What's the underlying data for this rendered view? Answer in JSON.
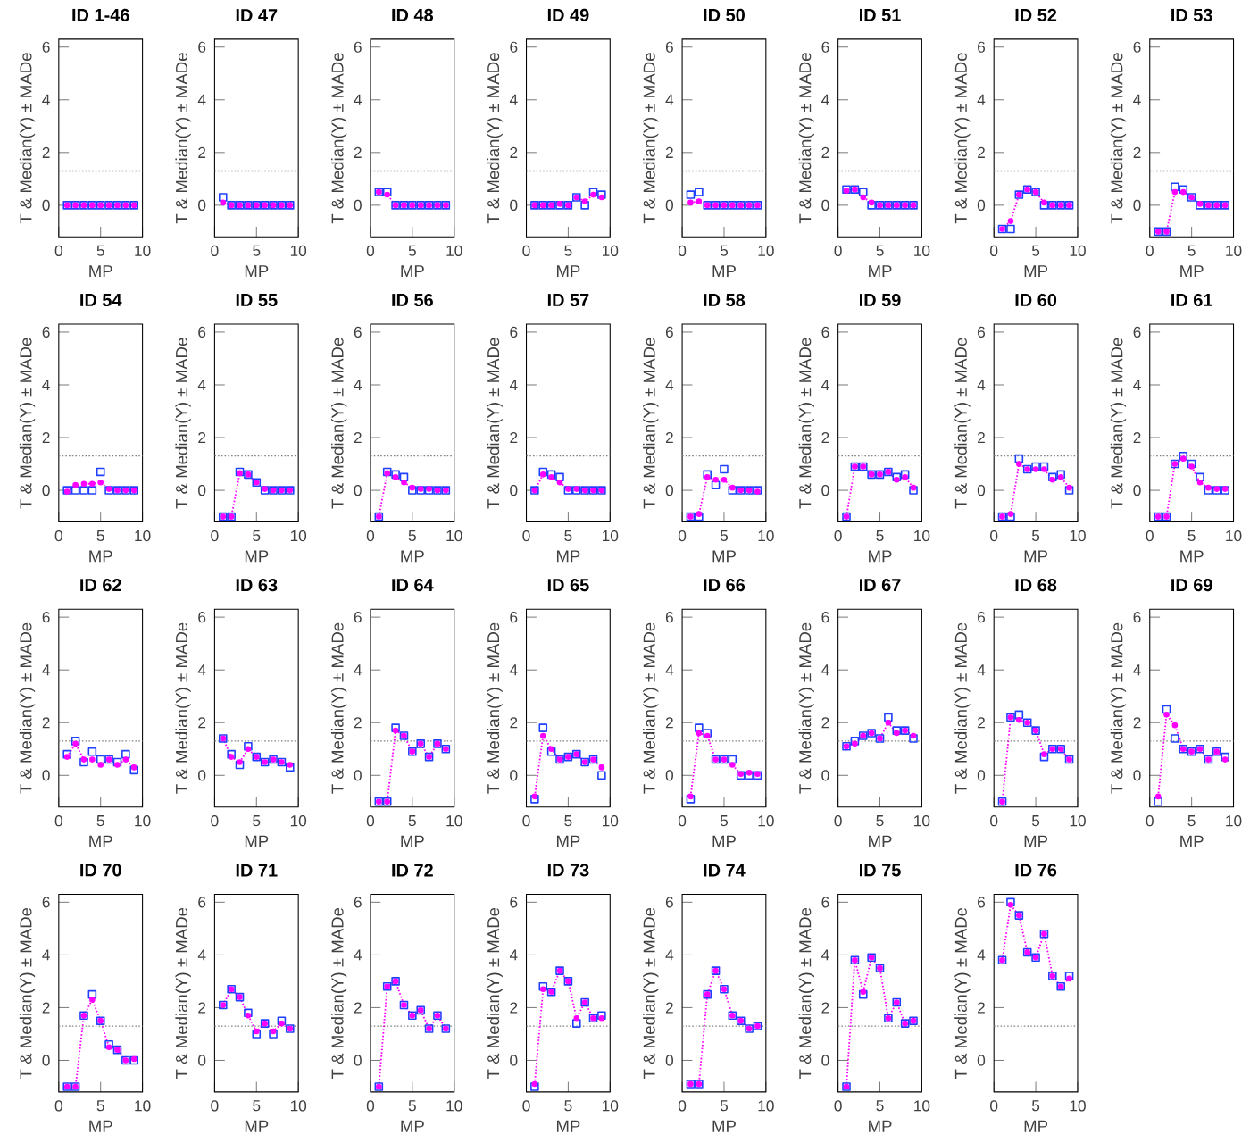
{
  "chart_data": [
    {
      "type": "line",
      "title": "ID 1-46",
      "xlabel": "MP",
      "ylabel": "T & Median(Y) ± MADe",
      "x": [
        1,
        2,
        3,
        4,
        5,
        6,
        7,
        8,
        9
      ],
      "xlim": [
        0,
        10
      ],
      "xticks": [
        0,
        5,
        10
      ],
      "ylim": [
        -1.2,
        6.3
      ],
      "yticks": [
        0,
        2,
        4,
        6
      ],
      "ref_lines": [
        {
          "axis": "y",
          "value": 1.3,
          "color": "#808080",
          "line_style": "dotted"
        }
      ],
      "series": [
        {
          "color": "#ff00ff",
          "marker": "circle",
          "line_style": "dotted",
          "values": [
            0,
            0,
            0,
            0,
            0,
            0,
            0,
            0,
            0
          ]
        },
        {
          "type": "scatter",
          "color": "#2040ff",
          "marker": "square",
          "values": [
            0,
            0,
            0,
            0,
            0,
            0,
            0,
            0,
            0
          ]
        }
      ]
    },
    {
      "type": "line",
      "title": "ID 47",
      "xlabel": "MP",
      "ylabel": "T & Median(Y) ± MADe",
      "x": [
        1,
        2,
        3,
        4,
        5,
        6,
        7,
        8,
        9
      ],
      "xlim": [
        0,
        10
      ],
      "xticks": [
        0,
        5,
        10
      ],
      "ylim": [
        -1.2,
        6.3
      ],
      "yticks": [
        0,
        2,
        4,
        6
      ],
      "ref_lines": [
        {
          "axis": "y",
          "value": 1.3,
          "color": "#808080",
          "line_style": "dotted"
        }
      ],
      "series": [
        {
          "color": "#ff00ff",
          "marker": "circle",
          "line_style": "dotted",
          "values": [
            0.1,
            0,
            0,
            0,
            0,
            0,
            0,
            0,
            0
          ]
        },
        {
          "type": "scatter",
          "color": "#2040ff",
          "marker": "square",
          "values": [
            0.3,
            0,
            0,
            0,
            0,
            0,
            0,
            0,
            0
          ]
        }
      ]
    },
    {
      "type": "line",
      "title": "ID 48",
      "xlabel": "MP",
      "ylabel": "T & Median(Y) ± MADe",
      "x": [
        1,
        2,
        3,
        4,
        5,
        6,
        7,
        8,
        9
      ],
      "xlim": [
        0,
        10
      ],
      "xticks": [
        0,
        5,
        10
      ],
      "ylim": [
        -1.2,
        6.3
      ],
      "yticks": [
        0,
        2,
        4,
        6
      ],
      "ref_lines": [
        {
          "axis": "y",
          "value": 1.3,
          "color": "#808080",
          "line_style": "dotted"
        }
      ],
      "series": [
        {
          "color": "#ff00ff",
          "marker": "circle",
          "line_style": "dotted",
          "values": [
            0.5,
            0.4,
            0,
            0,
            0,
            0,
            0,
            0,
            0
          ]
        },
        {
          "type": "scatter",
          "color": "#2040ff",
          "marker": "square",
          "values": [
            0.5,
            0.5,
            0,
            0,
            0,
            0,
            0,
            0,
            0
          ]
        }
      ]
    },
    {
      "type": "line",
      "title": "ID 49",
      "xlabel": "MP",
      "ylabel": "T & Median(Y) ± MADe",
      "x": [
        1,
        2,
        3,
        4,
        5,
        6,
        7,
        8,
        9
      ],
      "xlim": [
        0,
        10
      ],
      "xticks": [
        0,
        5,
        10
      ],
      "ylim": [
        -1.2,
        6.3
      ],
      "yticks": [
        0,
        2,
        4,
        6
      ],
      "ref_lines": [
        {
          "axis": "y",
          "value": 1.3,
          "color": "#808080",
          "line_style": "dotted"
        }
      ],
      "series": [
        {
          "color": "#ff00ff",
          "marker": "circle",
          "line_style": "dotted",
          "values": [
            0,
            0,
            0,
            0.05,
            0,
            0.3,
            0.15,
            0.4,
            0.3
          ]
        },
        {
          "type": "scatter",
          "color": "#2040ff",
          "marker": "square",
          "values": [
            0,
            0,
            0,
            0,
            0,
            0.3,
            0,
            0.5,
            0.4
          ]
        }
      ]
    },
    {
      "type": "line",
      "title": "ID 50",
      "xlabel": "MP",
      "ylabel": "T & Median(Y) ± MADe",
      "x": [
        1,
        2,
        3,
        4,
        5,
        6,
        7,
        8,
        9
      ],
      "xlim": [
        0,
        10
      ],
      "xticks": [
        0,
        5,
        10
      ],
      "ylim": [
        -1.2,
        6.3
      ],
      "yticks": [
        0,
        2,
        4,
        6
      ],
      "ref_lines": [
        {
          "axis": "y",
          "value": 1.3,
          "color": "#808080",
          "line_style": "dotted"
        }
      ],
      "series": [
        {
          "color": "#ff00ff",
          "marker": "circle",
          "line_style": "dotted",
          "values": [
            0.1,
            0.15,
            0,
            0,
            0,
            0,
            0,
            0,
            0
          ]
        },
        {
          "type": "scatter",
          "color": "#2040ff",
          "marker": "square",
          "values": [
            0.4,
            0.5,
            0,
            0,
            0,
            0,
            0,
            0,
            0
          ]
        }
      ]
    },
    {
      "type": "line",
      "title": "ID 51",
      "xlabel": "MP",
      "ylabel": "T & Median(Y) ± MADe",
      "x": [
        1,
        2,
        3,
        4,
        5,
        6,
        7,
        8,
        9
      ],
      "xlim": [
        0,
        10
      ],
      "xticks": [
        0,
        5,
        10
      ],
      "ylim": [
        -1.2,
        6.3
      ],
      "yticks": [
        0,
        2,
        4,
        6
      ],
      "ref_lines": [
        {
          "axis": "y",
          "value": 1.3,
          "color": "#808080",
          "line_style": "dotted"
        }
      ],
      "series": [
        {
          "color": "#ff00ff",
          "marker": "circle",
          "line_style": "dotted",
          "values": [
            0.55,
            0.6,
            0.3,
            0.1,
            0,
            0,
            0,
            0,
            0
          ]
        },
        {
          "type": "scatter",
          "color": "#2040ff",
          "marker": "square",
          "values": [
            0.6,
            0.6,
            0.5,
            0,
            0,
            0,
            0,
            0,
            0
          ]
        }
      ]
    },
    {
      "type": "line",
      "title": "ID 52",
      "xlabel": "MP",
      "ylabel": "T & Median(Y) ± MADe",
      "x": [
        1,
        2,
        3,
        4,
        5,
        6,
        7,
        8,
        9
      ],
      "xlim": [
        0,
        10
      ],
      "xticks": [
        0,
        5,
        10
      ],
      "ylim": [
        -1.2,
        6.3
      ],
      "yticks": [
        0,
        2,
        4,
        6
      ],
      "ref_lines": [
        {
          "axis": "y",
          "value": 1.3,
          "color": "#808080",
          "line_style": "dotted"
        }
      ],
      "series": [
        {
          "color": "#ff00ff",
          "marker": "circle",
          "line_style": "dotted",
          "values": [
            -0.9,
            -0.6,
            0.4,
            0.6,
            0.5,
            0.1,
            0,
            0,
            0
          ]
        },
        {
          "type": "scatter",
          "color": "#2040ff",
          "marker": "square",
          "values": [
            -0.9,
            -0.9,
            0.4,
            0.6,
            0.5,
            0,
            0,
            0,
            0
          ]
        }
      ]
    },
    {
      "type": "line",
      "title": "ID 53",
      "xlabel": "MP",
      "ylabel": "T & Median(Y) ± MADe",
      "x": [
        1,
        2,
        3,
        4,
        5,
        6,
        7,
        8,
        9
      ],
      "xlim": [
        0,
        10
      ],
      "xticks": [
        0,
        5,
        10
      ],
      "ylim": [
        -1.2,
        6.3
      ],
      "yticks": [
        0,
        2,
        4,
        6
      ],
      "ref_lines": [
        {
          "axis": "y",
          "value": 1.3,
          "color": "#808080",
          "line_style": "dotted"
        }
      ],
      "series": [
        {
          "color": "#ff00ff",
          "marker": "circle",
          "line_style": "dotted",
          "values": [
            -1,
            -1,
            0.5,
            0.5,
            0.3,
            0.05,
            0,
            0,
            0
          ]
        },
        {
          "type": "scatter",
          "color": "#2040ff",
          "marker": "square",
          "values": [
            -1,
            -1,
            0.7,
            0.6,
            0.3,
            0,
            0,
            0,
            0
          ]
        }
      ]
    },
    {
      "type": "line",
      "title": "ID 54",
      "xlabel": "MP",
      "ylabel": "T & Median(Y) ± MADe",
      "x": [
        1,
        2,
        3,
        4,
        5,
        6,
        7,
        8,
        9
      ],
      "xlim": [
        0,
        10
      ],
      "xticks": [
        0,
        5,
        10
      ],
      "ylim": [
        -1.2,
        6.3
      ],
      "yticks": [
        0,
        2,
        4,
        6
      ],
      "ref_lines": [
        {
          "axis": "y",
          "value": 1.3,
          "color": "#808080",
          "line_style": "dotted"
        }
      ],
      "series": [
        {
          "color": "#ff00ff",
          "marker": "circle",
          "line_style": "dotted",
          "values": [
            -0.05,
            0.2,
            0.25,
            0.25,
            0.3,
            0.05,
            0,
            0,
            0
          ]
        },
        {
          "type": "scatter",
          "color": "#2040ff",
          "marker": "square",
          "values": [
            0,
            0,
            0,
            0,
            0.7,
            0,
            0,
            0,
            0
          ]
        }
      ]
    },
    {
      "type": "line",
      "title": "ID 55",
      "xlabel": "MP",
      "ylabel": "T & Median(Y) ± MADe",
      "x": [
        1,
        2,
        3,
        4,
        5,
        6,
        7,
        8,
        9
      ],
      "xlim": [
        0,
        10
      ],
      "xticks": [
        0,
        5,
        10
      ],
      "ylim": [
        -1.2,
        6.3
      ],
      "yticks": [
        0,
        2,
        4,
        6
      ],
      "ref_lines": [
        {
          "axis": "y",
          "value": 1.3,
          "color": "#808080",
          "line_style": "dotted"
        }
      ],
      "series": [
        {
          "color": "#ff00ff",
          "marker": "circle",
          "line_style": "dotted",
          "values": [
            -1,
            -1,
            0.65,
            0.6,
            0.3,
            0.05,
            0,
            0,
            0
          ]
        },
        {
          "type": "scatter",
          "color": "#2040ff",
          "marker": "square",
          "values": [
            -1,
            -1,
            0.7,
            0.6,
            0.3,
            0,
            0,
            0,
            0
          ]
        }
      ]
    },
    {
      "type": "line",
      "title": "ID 56",
      "xlabel": "MP",
      "ylabel": "T & Median(Y) ± MADe",
      "x": [
        1,
        2,
        3,
        4,
        5,
        6,
        7,
        8,
        9
      ],
      "xlim": [
        0,
        10
      ],
      "xticks": [
        0,
        5,
        10
      ],
      "ylim": [
        -1.2,
        6.3
      ],
      "yticks": [
        0,
        2,
        4,
        6
      ],
      "ref_lines": [
        {
          "axis": "y",
          "value": 1.3,
          "color": "#808080",
          "line_style": "dotted"
        }
      ],
      "series": [
        {
          "color": "#ff00ff",
          "marker": "circle",
          "line_style": "dotted",
          "values": [
            -1,
            0.65,
            0.5,
            0.3,
            0.1,
            0.05,
            0.05,
            0,
            0
          ]
        },
        {
          "type": "scatter",
          "color": "#2040ff",
          "marker": "square",
          "values": [
            -1,
            0.7,
            0.6,
            0.5,
            0,
            0,
            0,
            0,
            0
          ]
        }
      ]
    },
    {
      "type": "line",
      "title": "ID 57",
      "xlabel": "MP",
      "ylabel": "T & Median(Y) ± MADe",
      "x": [
        1,
        2,
        3,
        4,
        5,
        6,
        7,
        8,
        9
      ],
      "xlim": [
        0,
        10
      ],
      "xticks": [
        0,
        5,
        10
      ],
      "ylim": [
        -1.2,
        6.3
      ],
      "yticks": [
        0,
        2,
        4,
        6
      ],
      "ref_lines": [
        {
          "axis": "y",
          "value": 1.3,
          "color": "#808080",
          "line_style": "dotted"
        }
      ],
      "series": [
        {
          "color": "#ff00ff",
          "marker": "circle",
          "line_style": "dotted",
          "values": [
            0,
            0.6,
            0.5,
            0.3,
            0.05,
            0.05,
            0,
            0,
            0
          ]
        },
        {
          "type": "scatter",
          "color": "#2040ff",
          "marker": "square",
          "values": [
            0,
            0.7,
            0.6,
            0.5,
            0,
            0,
            0,
            0,
            0
          ]
        }
      ]
    },
    {
      "type": "line",
      "title": "ID 58",
      "xlabel": "MP",
      "ylabel": "T & Median(Y) ± MADe",
      "x": [
        1,
        2,
        3,
        4,
        5,
        6,
        7,
        8,
        9
      ],
      "xlim": [
        0,
        10
      ],
      "xticks": [
        0,
        5,
        10
      ],
      "ylim": [
        -1.2,
        6.3
      ],
      "yticks": [
        0,
        2,
        4,
        6
      ],
      "ref_lines": [
        {
          "axis": "y",
          "value": 1.3,
          "color": "#808080",
          "line_style": "dotted"
        }
      ],
      "series": [
        {
          "color": "#ff00ff",
          "marker": "circle",
          "line_style": "dotted",
          "values": [
            -1,
            -0.9,
            0.5,
            0.4,
            0.4,
            0.1,
            0,
            0,
            -0.05
          ]
        },
        {
          "type": "scatter",
          "color": "#2040ff",
          "marker": "square",
          "values": [
            -1,
            -1,
            0.6,
            0.2,
            0.8,
            0,
            0,
            0,
            0
          ]
        }
      ]
    },
    {
      "type": "line",
      "title": "ID 59",
      "xlabel": "MP",
      "ylabel": "T & Median(Y) ± MADe",
      "x": [
        1,
        2,
        3,
        4,
        5,
        6,
        7,
        8,
        9
      ],
      "xlim": [
        0,
        10
      ],
      "xticks": [
        0,
        5,
        10
      ],
      "ylim": [
        -1.2,
        6.3
      ],
      "yticks": [
        0,
        2,
        4,
        6
      ],
      "ref_lines": [
        {
          "axis": "y",
          "value": 1.3,
          "color": "#808080",
          "line_style": "dotted"
        }
      ],
      "series": [
        {
          "color": "#ff00ff",
          "marker": "circle",
          "line_style": "dotted",
          "values": [
            -1,
            0.9,
            0.9,
            0.6,
            0.6,
            0.7,
            0.4,
            0.5,
            0.1
          ]
        },
        {
          "type": "scatter",
          "color": "#2040ff",
          "marker": "square",
          "values": [
            -1,
            0.9,
            0.9,
            0.6,
            0.6,
            0.7,
            0.5,
            0.6,
            0
          ]
        }
      ]
    },
    {
      "type": "line",
      "title": "ID 60",
      "xlabel": "MP",
      "ylabel": "T & Median(Y) ± MADe",
      "x": [
        1,
        2,
        3,
        4,
        5,
        6,
        7,
        8,
        9
      ],
      "xlim": [
        0,
        10
      ],
      "xticks": [
        0,
        5,
        10
      ],
      "ylim": [
        -1.2,
        6.3
      ],
      "yticks": [
        0,
        2,
        4,
        6
      ],
      "ref_lines": [
        {
          "axis": "y",
          "value": 1.3,
          "color": "#808080",
          "line_style": "dotted"
        }
      ],
      "series": [
        {
          "color": "#ff00ff",
          "marker": "circle",
          "line_style": "dotted",
          "values": [
            -1,
            -0.9,
            1.0,
            0.8,
            0.8,
            0.8,
            0.4,
            0.5,
            0.1
          ]
        },
        {
          "type": "scatter",
          "color": "#2040ff",
          "marker": "square",
          "values": [
            -1,
            -1,
            1.2,
            0.8,
            0.9,
            0.9,
            0.5,
            0.6,
            0
          ]
        }
      ]
    },
    {
      "type": "line",
      "title": "ID 61",
      "xlabel": "MP",
      "ylabel": "T & Median(Y) ± MADe",
      "x": [
        1,
        2,
        3,
        4,
        5,
        6,
        7,
        8,
        9
      ],
      "xlim": [
        0,
        10
      ],
      "xticks": [
        0,
        5,
        10
      ],
      "ylim": [
        -1.2,
        6.3
      ],
      "yticks": [
        0,
        2,
        4,
        6
      ],
      "ref_lines": [
        {
          "axis": "y",
          "value": 1.3,
          "color": "#808080",
          "line_style": "dotted"
        }
      ],
      "series": [
        {
          "color": "#ff00ff",
          "marker": "circle",
          "line_style": "dotted",
          "values": [
            -1,
            -1,
            1.0,
            1.2,
            0.9,
            0.3,
            0.1,
            0.05,
            0.05
          ]
        },
        {
          "type": "scatter",
          "color": "#2040ff",
          "marker": "square",
          "values": [
            -1,
            -1,
            1.0,
            1.3,
            1.0,
            0.5,
            0,
            0,
            0
          ]
        }
      ]
    },
    {
      "type": "line",
      "title": "ID 62",
      "xlabel": "MP",
      "ylabel": "T & Median(Y) ± MADe",
      "x": [
        1,
        2,
        3,
        4,
        5,
        6,
        7,
        8,
        9
      ],
      "xlim": [
        0,
        10
      ],
      "xticks": [
        0,
        5,
        10
      ],
      "ylim": [
        -1.2,
        6.3
      ],
      "yticks": [
        0,
        2,
        4,
        6
      ],
      "ref_lines": [
        {
          "axis": "y",
          "value": 1.3,
          "color": "#808080",
          "line_style": "dotted"
        }
      ],
      "series": [
        {
          "color": "#ff00ff",
          "marker": "circle",
          "line_style": "dotted",
          "values": [
            0.7,
            1.2,
            0.6,
            0.6,
            0.4,
            0.6,
            0.4,
            0.6,
            0.3
          ]
        },
        {
          "type": "scatter",
          "color": "#2040ff",
          "marker": "square",
          "values": [
            0.8,
            1.3,
            0.5,
            0.9,
            0.6,
            0.6,
            0.5,
            0.8,
            0.2
          ]
        }
      ]
    },
    {
      "type": "line",
      "title": "ID 63",
      "xlabel": "MP",
      "ylabel": "T & Median(Y) ± MADe",
      "x": [
        1,
        2,
        3,
        4,
        5,
        6,
        7,
        8,
        9
      ],
      "xlim": [
        0,
        10
      ],
      "xticks": [
        0,
        5,
        10
      ],
      "ylim": [
        -1.2,
        6.3
      ],
      "yticks": [
        0,
        2,
        4,
        6
      ],
      "ref_lines": [
        {
          "axis": "y",
          "value": 1.3,
          "color": "#808080",
          "line_style": "dotted"
        }
      ],
      "series": [
        {
          "color": "#ff00ff",
          "marker": "circle",
          "line_style": "dotted",
          "values": [
            1.4,
            0.7,
            0.5,
            1.0,
            0.7,
            0.5,
            0.6,
            0.5,
            0.4
          ]
        },
        {
          "type": "scatter",
          "color": "#2040ff",
          "marker": "square",
          "values": [
            1.4,
            0.8,
            0.4,
            1.1,
            0.7,
            0.5,
            0.6,
            0.5,
            0.3
          ]
        }
      ]
    },
    {
      "type": "line",
      "title": "ID 64",
      "xlabel": "MP",
      "ylabel": "T & Median(Y) ± MADe",
      "x": [
        1,
        2,
        3,
        4,
        5,
        6,
        7,
        8,
        9
      ],
      "xlim": [
        0,
        10
      ],
      "xticks": [
        0,
        5,
        10
      ],
      "ylim": [
        -1.2,
        6.3
      ],
      "yticks": [
        0,
        2,
        4,
        6
      ],
      "ref_lines": [
        {
          "axis": "y",
          "value": 1.3,
          "color": "#808080",
          "line_style": "dotted"
        }
      ],
      "series": [
        {
          "color": "#ff00ff",
          "marker": "circle",
          "line_style": "dotted",
          "values": [
            -1,
            -1,
            1.7,
            1.5,
            0.9,
            1.2,
            0.7,
            1.2,
            1.0
          ]
        },
        {
          "type": "scatter",
          "color": "#2040ff",
          "marker": "square",
          "values": [
            -1,
            -1,
            1.8,
            1.5,
            0.9,
            1.2,
            0.7,
            1.2,
            1.0
          ]
        }
      ]
    },
    {
      "type": "line",
      "title": "ID 65",
      "xlabel": "MP",
      "ylabel": "T & Median(Y) ± MADe",
      "x": [
        1,
        2,
        3,
        4,
        5,
        6,
        7,
        8,
        9
      ],
      "xlim": [
        0,
        10
      ],
      "xticks": [
        0,
        5,
        10
      ],
      "ylim": [
        -1.2,
        6.3
      ],
      "yticks": [
        0,
        2,
        4,
        6
      ],
      "ref_lines": [
        {
          "axis": "y",
          "value": 1.3,
          "color": "#808080",
          "line_style": "dotted"
        }
      ],
      "series": [
        {
          "color": "#ff00ff",
          "marker": "circle",
          "line_style": "dotted",
          "values": [
            -0.8,
            1.5,
            1.0,
            0.6,
            0.7,
            0.8,
            0.5,
            0.6,
            0.3
          ]
        },
        {
          "type": "scatter",
          "color": "#2040ff",
          "marker": "square",
          "values": [
            -0.9,
            1.8,
            0.9,
            0.6,
            0.7,
            0.8,
            0.5,
            0.6,
            0
          ]
        }
      ]
    },
    {
      "type": "line",
      "title": "ID 66",
      "xlabel": "MP",
      "ylabel": "T & Median(Y) ± MADe",
      "x": [
        1,
        2,
        3,
        4,
        5,
        6,
        7,
        8,
        9
      ],
      "xlim": [
        0,
        10
      ],
      "xticks": [
        0,
        5,
        10
      ],
      "ylim": [
        -1.2,
        6.3
      ],
      "yticks": [
        0,
        2,
        4,
        6
      ],
      "ref_lines": [
        {
          "axis": "y",
          "value": 1.3,
          "color": "#808080",
          "line_style": "dotted"
        }
      ],
      "series": [
        {
          "color": "#ff00ff",
          "marker": "circle",
          "line_style": "dotted",
          "values": [
            -0.8,
            1.6,
            1.5,
            0.6,
            0.6,
            0.4,
            0.05,
            0.1,
            0.05
          ]
        },
        {
          "type": "scatter",
          "color": "#2040ff",
          "marker": "square",
          "values": [
            -0.9,
            1.8,
            1.6,
            0.6,
            0.6,
            0.6,
            0,
            0,
            0
          ]
        }
      ]
    },
    {
      "type": "line",
      "title": "ID 67",
      "xlabel": "MP",
      "ylabel": "T & Median(Y) ± MADe",
      "x": [
        1,
        2,
        3,
        4,
        5,
        6,
        7,
        8,
        9
      ],
      "xlim": [
        0,
        10
      ],
      "xticks": [
        0,
        5,
        10
      ],
      "ylim": [
        -1.2,
        6.3
      ],
      "yticks": [
        0,
        2,
        4,
        6
      ],
      "ref_lines": [
        {
          "axis": "y",
          "value": 1.3,
          "color": "#808080",
          "line_style": "dotted"
        }
      ],
      "series": [
        {
          "color": "#ff00ff",
          "marker": "circle",
          "line_style": "dotted",
          "values": [
            1.1,
            1.2,
            1.5,
            1.6,
            1.4,
            2.0,
            1.6,
            1.7,
            1.5
          ]
        },
        {
          "type": "scatter",
          "color": "#2040ff",
          "marker": "square",
          "values": [
            1.1,
            1.3,
            1.5,
            1.6,
            1.4,
            2.2,
            1.7,
            1.7,
            1.4
          ]
        }
      ]
    },
    {
      "type": "line",
      "title": "ID 68",
      "xlabel": "MP",
      "ylabel": "T & Median(Y) ± MADe",
      "x": [
        1,
        2,
        3,
        4,
        5,
        6,
        7,
        8,
        9
      ],
      "xlim": [
        0,
        10
      ],
      "xticks": [
        0,
        5,
        10
      ],
      "ylim": [
        -1.2,
        6.3
      ],
      "yticks": [
        0,
        2,
        4,
        6
      ],
      "ref_lines": [
        {
          "axis": "y",
          "value": 1.3,
          "color": "#808080",
          "line_style": "dotted"
        }
      ],
      "series": [
        {
          "color": "#ff00ff",
          "marker": "circle",
          "line_style": "dotted",
          "values": [
            -1,
            2.2,
            2.1,
            2.0,
            1.7,
            0.8,
            1.0,
            1.0,
            0.6
          ]
        },
        {
          "type": "scatter",
          "color": "#2040ff",
          "marker": "square",
          "values": [
            -1,
            2.2,
            2.3,
            2.0,
            1.7,
            0.7,
            1.0,
            1.0,
            0.6
          ]
        }
      ]
    },
    {
      "type": "line",
      "title": "ID 69",
      "xlabel": "MP",
      "ylabel": "T & Median(Y) ± MADe",
      "x": [
        1,
        2,
        3,
        4,
        5,
        6,
        7,
        8,
        9
      ],
      "xlim": [
        0,
        10
      ],
      "xticks": [
        0,
        5,
        10
      ],
      "ylim": [
        -1.2,
        6.3
      ],
      "yticks": [
        0,
        2,
        4,
        6
      ],
      "ref_lines": [
        {
          "axis": "y",
          "value": 1.3,
          "color": "#808080",
          "line_style": "dotted"
        }
      ],
      "series": [
        {
          "color": "#ff00ff",
          "marker": "circle",
          "line_style": "dotted",
          "values": [
            -0.8,
            2.3,
            1.9,
            1.0,
            0.9,
            1.0,
            0.6,
            0.9,
            0.6
          ]
        },
        {
          "type": "scatter",
          "color": "#2040ff",
          "marker": "square",
          "values": [
            -1,
            2.5,
            1.4,
            1.0,
            0.9,
            1.0,
            0.6,
            0.9,
            0.7
          ]
        }
      ]
    },
    {
      "type": "line",
      "title": "ID 70",
      "xlabel": "MP",
      "ylabel": "T & Median(Y) ± MADe",
      "x": [
        1,
        2,
        3,
        4,
        5,
        6,
        7,
        8,
        9
      ],
      "xlim": [
        0,
        10
      ],
      "xticks": [
        0,
        5,
        10
      ],
      "ylim": [
        -1.2,
        6.3
      ],
      "yticks": [
        0,
        2,
        4,
        6
      ],
      "ref_lines": [
        {
          "axis": "y",
          "value": 1.3,
          "color": "#808080",
          "line_style": "dotted"
        }
      ],
      "series": [
        {
          "color": "#ff00ff",
          "marker": "circle",
          "line_style": "dotted",
          "values": [
            -1,
            -1,
            1.7,
            2.3,
            1.5,
            0.5,
            0.4,
            0,
            0.05
          ]
        },
        {
          "type": "scatter",
          "color": "#2040ff",
          "marker": "square",
          "values": [
            -1,
            -1,
            1.7,
            2.5,
            1.5,
            0.6,
            0.4,
            0,
            0
          ]
        }
      ]
    },
    {
      "type": "line",
      "title": "ID 71",
      "xlabel": "MP",
      "ylabel": "T & Median(Y) ± MADe",
      "x": [
        1,
        2,
        3,
        4,
        5,
        6,
        7,
        8,
        9
      ],
      "xlim": [
        0,
        10
      ],
      "xticks": [
        0,
        5,
        10
      ],
      "ylim": [
        -1.2,
        6.3
      ],
      "yticks": [
        0,
        2,
        4,
        6
      ],
      "ref_lines": [
        {
          "axis": "y",
          "value": 1.3,
          "color": "#808080",
          "line_style": "dotted"
        }
      ],
      "series": [
        {
          "color": "#ff00ff",
          "marker": "circle",
          "line_style": "dotted",
          "values": [
            2.1,
            2.7,
            2.4,
            1.7,
            1.1,
            1.4,
            1.1,
            1.4,
            1.2
          ]
        },
        {
          "type": "scatter",
          "color": "#2040ff",
          "marker": "square",
          "values": [
            2.1,
            2.7,
            2.4,
            1.8,
            1.0,
            1.4,
            1.0,
            1.5,
            1.2
          ]
        }
      ]
    },
    {
      "type": "line",
      "title": "ID 72",
      "xlabel": "MP",
      "ylabel": "T & Median(Y) ± MADe",
      "x": [
        1,
        2,
        3,
        4,
        5,
        6,
        7,
        8,
        9
      ],
      "xlim": [
        0,
        10
      ],
      "xticks": [
        0,
        5,
        10
      ],
      "ylim": [
        -1.2,
        6.3
      ],
      "yticks": [
        0,
        2,
        4,
        6
      ],
      "ref_lines": [
        {
          "axis": "y",
          "value": 1.3,
          "color": "#808080",
          "line_style": "dotted"
        }
      ],
      "series": [
        {
          "color": "#ff00ff",
          "marker": "circle",
          "line_style": "dotted",
          "values": [
            -1,
            2.8,
            3.0,
            2.1,
            1.7,
            1.9,
            1.2,
            1.7,
            1.2
          ]
        },
        {
          "type": "scatter",
          "color": "#2040ff",
          "marker": "square",
          "values": [
            -1,
            2.8,
            3.0,
            2.1,
            1.7,
            1.9,
            1.2,
            1.7,
            1.2
          ]
        }
      ]
    },
    {
      "type": "line",
      "title": "ID 73",
      "xlabel": "MP",
      "ylabel": "T & Median(Y) ± MADe",
      "x": [
        1,
        2,
        3,
        4,
        5,
        6,
        7,
        8,
        9
      ],
      "xlim": [
        0,
        10
      ],
      "xticks": [
        0,
        5,
        10
      ],
      "ylim": [
        -1.2,
        6.3
      ],
      "yticks": [
        0,
        2,
        4,
        6
      ],
      "ref_lines": [
        {
          "axis": "y",
          "value": 1.3,
          "color": "#808080",
          "line_style": "dotted"
        }
      ],
      "series": [
        {
          "color": "#ff00ff",
          "marker": "circle",
          "line_style": "dotted",
          "values": [
            -0.9,
            2.7,
            2.6,
            3.4,
            3.0,
            1.6,
            2.2,
            1.6,
            1.6
          ]
        },
        {
          "type": "scatter",
          "color": "#2040ff",
          "marker": "square",
          "values": [
            -1,
            2.8,
            2.6,
            3.4,
            3.0,
            1.4,
            2.2,
            1.6,
            1.7
          ]
        }
      ]
    },
    {
      "type": "line",
      "title": "ID 74",
      "xlabel": "MP",
      "ylabel": "T & Median(Y) ± MADe",
      "x": [
        1,
        2,
        3,
        4,
        5,
        6,
        7,
        8,
        9
      ],
      "xlim": [
        0,
        10
      ],
      "xticks": [
        0,
        5,
        10
      ],
      "ylim": [
        -1.2,
        6.3
      ],
      "yticks": [
        0,
        2,
        4,
        6
      ],
      "ref_lines": [
        {
          "axis": "y",
          "value": 1.3,
          "color": "#808080",
          "line_style": "dotted"
        }
      ],
      "series": [
        {
          "color": "#ff00ff",
          "marker": "circle",
          "line_style": "dotted",
          "values": [
            -0.9,
            -0.9,
            2.5,
            3.4,
            2.7,
            1.7,
            1.5,
            1.2,
            1.3
          ]
        },
        {
          "type": "scatter",
          "color": "#2040ff",
          "marker": "square",
          "values": [
            -0.9,
            -0.9,
            2.5,
            3.4,
            2.7,
            1.7,
            1.5,
            1.2,
            1.3
          ]
        }
      ]
    },
    {
      "type": "line",
      "title": "ID 75",
      "xlabel": "MP",
      "ylabel": "T & Median(Y) ± MADe",
      "x": [
        1,
        2,
        3,
        4,
        5,
        6,
        7,
        8,
        9
      ],
      "xlim": [
        0,
        10
      ],
      "xticks": [
        0,
        5,
        10
      ],
      "ylim": [
        -1.2,
        6.3
      ],
      "yticks": [
        0,
        2,
        4,
        6
      ],
      "ref_lines": [
        {
          "axis": "y",
          "value": 1.3,
          "color": "#808080",
          "line_style": "dotted"
        }
      ],
      "series": [
        {
          "color": "#ff00ff",
          "marker": "circle",
          "line_style": "dotted",
          "values": [
            -1,
            3.8,
            2.6,
            3.9,
            3.5,
            1.6,
            2.2,
            1.4,
            1.5
          ]
        },
        {
          "type": "scatter",
          "color": "#2040ff",
          "marker": "square",
          "values": [
            -1,
            3.8,
            2.5,
            3.9,
            3.5,
            1.6,
            2.2,
            1.4,
            1.5
          ]
        }
      ]
    },
    {
      "type": "line",
      "title": "ID 76",
      "xlabel": "MP",
      "ylabel": "T & Median(Y) ± MADe",
      "x": [
        1,
        2,
        3,
        4,
        5,
        6,
        7,
        8,
        9
      ],
      "xlim": [
        0,
        10
      ],
      "xticks": [
        0,
        5,
        10
      ],
      "ylim": [
        -1.2,
        6.3
      ],
      "yticks": [
        0,
        2,
        4,
        6
      ],
      "ref_lines": [
        {
          "axis": "y",
          "value": 1.3,
          "color": "#808080",
          "line_style": "dotted"
        }
      ],
      "series": [
        {
          "color": "#ff00ff",
          "marker": "circle",
          "line_style": "dotted",
          "values": [
            3.8,
            5.9,
            5.5,
            4.1,
            3.9,
            4.8,
            3.2,
            2.8,
            3.1
          ]
        },
        {
          "type": "scatter",
          "color": "#2040ff",
          "marker": "square",
          "values": [
            3.8,
            6.0,
            5.5,
            4.1,
            3.9,
            4.8,
            3.2,
            2.8,
            3.2
          ]
        }
      ]
    }
  ]
}
